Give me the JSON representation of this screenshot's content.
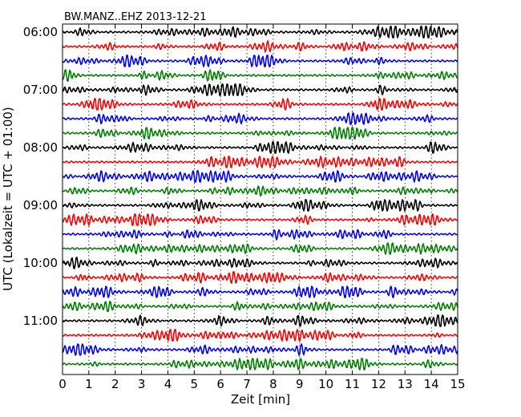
{
  "chart_data": {
    "type": "line",
    "title": "BW.MANZ..EHZ 2013-12-21",
    "xlabel": "Zeit  [min]",
    "ylabel": "UTC (Lokalzeit = UTC + 01:00)",
    "xlim": [
      0,
      15
    ],
    "x_ticks": [
      "0",
      "1",
      "2",
      "3",
      "4",
      "5",
      "6",
      "7",
      "8",
      "9",
      "10",
      "11",
      "12",
      "13",
      "14",
      "15"
    ],
    "y_tick_labels": [
      "06:00",
      "07:00",
      "08:00",
      "09:00",
      "10:00",
      "11:00"
    ],
    "row_interval_min": 15,
    "rows": 24,
    "start_time": "06:00",
    "colors": [
      "#000000",
      "#ff0000",
      "#0000ff",
      "#008000"
    ],
    "grid": "vertical-dotted"
  }
}
